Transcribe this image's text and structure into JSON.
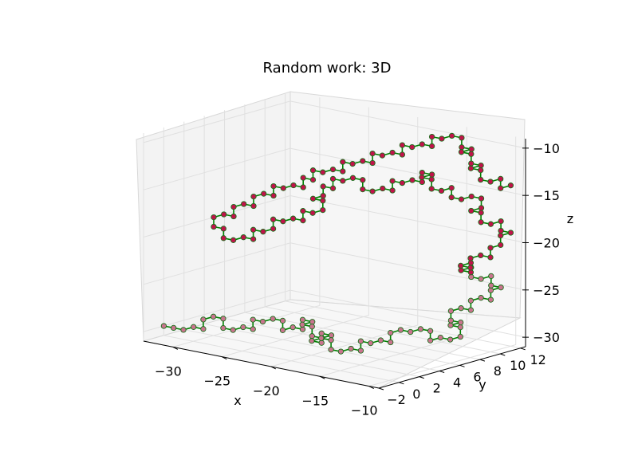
{
  "chart_data": {
    "type": "scatter",
    "projection": "3d",
    "title": "Random work: 3D",
    "xlabel": "x",
    "ylabel": "y",
    "zlabel": "z",
    "xlim": [
      -33,
      -9
    ],
    "ylim": [
      -2,
      12.5
    ],
    "zlim": [
      -31,
      -9
    ],
    "xticks": [
      "−30",
      "−25",
      "−20",
      "−15",
      "−10"
    ],
    "yticks": [
      "−2",
      "0",
      "2",
      "4",
      "6",
      "8",
      "10",
      "12"
    ],
    "zticks": [
      "−10",
      "−15",
      "−20",
      "−25",
      "−30"
    ],
    "grid": true,
    "colors": {
      "marker_upper": "#c0134a",
      "marker_lower": "#c9748e",
      "edge": "#1a6e1a",
      "line": "#008000"
    },
    "path_note": "lattice random walk with unit steps; points plotted as markers joined by a line",
    "series": [
      {
        "points": [
          [
            -33,
            0,
            -30
          ],
          [
            -32,
            0,
            -30
          ],
          [
            -31,
            0,
            -30
          ],
          [
            -31,
            1,
            -30
          ],
          [
            -30,
            1,
            -30
          ],
          [
            -30,
            1,
            -29
          ],
          [
            -30,
            2,
            -29
          ],
          [
            -29,
            2,
            -29
          ],
          [
            -29,
            2,
            -30
          ],
          [
            -28,
            2,
            -30
          ],
          [
            -28,
            3,
            -30
          ],
          [
            -27,
            3,
            -30
          ],
          [
            -27,
            3,
            -29
          ],
          [
            -26,
            3,
            -29
          ],
          [
            -26,
            4,
            -29
          ],
          [
            -25,
            4,
            -29
          ],
          [
            -25,
            4,
            -30
          ],
          [
            -25,
            5,
            -30
          ],
          [
            -24,
            5,
            -30
          ],
          [
            -24,
            5,
            -29
          ],
          [
            -23,
            5,
            -29
          ],
          [
            -23,
            4,
            -29
          ],
          [
            -22,
            4,
            -29
          ],
          [
            -22,
            4,
            -30
          ],
          [
            -21,
            4,
            -30
          ],
          [
            -21,
            3,
            -30
          ],
          [
            -20,
            3,
            -30
          ],
          [
            -20,
            3,
            -29
          ],
          [
            -19,
            3,
            -29
          ],
          [
            -19,
            2,
            -29
          ],
          [
            -18,
            2,
            -29
          ],
          [
            -18,
            2,
            -30
          ],
          [
            -17,
            2,
            -30
          ],
          [
            -17,
            3,
            -30
          ],
          [
            -16,
            3,
            -30
          ],
          [
            -16,
            3,
            -29
          ],
          [
            -15,
            3,
            -29
          ],
          [
            -15,
            4,
            -29
          ],
          [
            -14,
            4,
            -29
          ],
          [
            -14,
            4,
            -28
          ],
          [
            -14,
            5,
            -28
          ],
          [
            -13,
            5,
            -28
          ],
          [
            -13,
            6,
            -28
          ],
          [
            -12,
            6,
            -28
          ],
          [
            -12,
            6,
            -29
          ],
          [
            -12,
            7,
            -29
          ],
          [
            -11,
            7,
            -29
          ],
          [
            -11,
            8,
            -29
          ],
          [
            -11,
            8,
            -28
          ],
          [
            -12,
            8,
            -28
          ],
          [
            -12,
            9,
            -28
          ],
          [
            -13,
            9,
            -28
          ],
          [
            -13,
            9,
            -27
          ],
          [
            -13,
            10,
            -27
          ],
          [
            -12,
            10,
            -27
          ],
          [
            -12,
            10,
            -26
          ],
          [
            -12,
            11,
            -26
          ],
          [
            -11,
            11,
            -26
          ],
          [
            -11,
            11,
            -25
          ],
          [
            -11,
            12,
            -25
          ],
          [
            -12,
            12,
            -25
          ],
          [
            -12,
            12,
            -24
          ],
          [
            -12,
            11,
            -24
          ],
          [
            -13,
            11,
            -24
          ],
          [
            -13,
            11,
            -23
          ],
          [
            -13,
            10,
            -23
          ],
          [
            -12,
            10,
            -23
          ],
          [
            -12,
            10,
            -22
          ],
          [
            -12,
            9,
            -22
          ],
          [
            -11,
            9,
            -22
          ],
          [
            -11,
            9,
            -21
          ],
          [
            -11,
            10,
            -21
          ],
          [
            -10,
            10,
            -21
          ],
          [
            -10,
            10,
            -20
          ],
          [
            -10,
            11,
            -20
          ],
          [
            -10,
            11,
            -19
          ],
          [
            -10,
            12,
            -19
          ],
          [
            -11,
            12,
            -19
          ],
          [
            -11,
            12,
            -18
          ],
          [
            -11,
            11,
            -18
          ],
          [
            -12,
            11,
            -18
          ],
          [
            -12,
            11,
            -17
          ],
          [
            -13,
            11,
            -17
          ],
          [
            -13,
            12,
            -17
          ],
          [
            -13,
            12,
            -16
          ],
          [
            -14,
            12,
            -16
          ],
          [
            -14,
            11,
            -16
          ],
          [
            -15,
            11,
            -16
          ],
          [
            -15,
            11,
            -15
          ],
          [
            -15,
            10,
            -15
          ],
          [
            -16,
            10,
            -15
          ],
          [
            -16,
            10,
            -14
          ],
          [
            -17,
            10,
            -14
          ],
          [
            -17,
            11,
            -14
          ],
          [
            -18,
            11,
            -14
          ],
          [
            -18,
            11,
            -15
          ],
          [
            -19,
            11,
            -15
          ],
          [
            -19,
            10,
            -15
          ],
          [
            -20,
            10,
            -15
          ],
          [
            -20,
            10,
            -16
          ],
          [
            -21,
            10,
            -16
          ],
          [
            -21,
            9,
            -16
          ],
          [
            -22,
            9,
            -16
          ],
          [
            -22,
            9,
            -15
          ],
          [
            -23,
            9,
            -15
          ],
          [
            -23,
            8,
            -15
          ],
          [
            -24,
            8,
            -15
          ],
          [
            -24,
            8,
            -16
          ],
          [
            -25,
            8,
            -16
          ],
          [
            -25,
            8,
            -17
          ],
          [
            -25,
            7,
            -17
          ],
          [
            -24,
            7,
            -17
          ],
          [
            -24,
            7,
            -18
          ],
          [
            -24,
            6,
            -18
          ],
          [
            -25,
            6,
            -18
          ],
          [
            -25,
            6,
            -19
          ],
          [
            -26,
            6,
            -19
          ],
          [
            -26,
            5,
            -19
          ],
          [
            -27,
            5,
            -19
          ],
          [
            -27,
            5,
            -20
          ],
          [
            -27,
            4,
            -20
          ],
          [
            -28,
            4,
            -20
          ],
          [
            -28,
            4,
            -21
          ],
          [
            -29,
            4,
            -21
          ],
          [
            -29,
            3,
            -21
          ],
          [
            -30,
            3,
            -21
          ],
          [
            -30,
            3,
            -20
          ],
          [
            -31,
            3,
            -20
          ],
          [
            -31,
            3,
            -19
          ],
          [
            -31,
            4,
            -19
          ],
          [
            -30,
            4,
            -19
          ],
          [
            -30,
            4,
            -18
          ],
          [
            -30,
            5,
            -18
          ],
          [
            -29,
            5,
            -18
          ],
          [
            -29,
            5,
            -17
          ],
          [
            -29,
            6,
            -17
          ],
          [
            -28,
            6,
            -17
          ],
          [
            -28,
            6,
            -16
          ],
          [
            -27,
            6,
            -16
          ],
          [
            -27,
            7,
            -16
          ],
          [
            -26,
            7,
            -16
          ],
          [
            -26,
            7,
            -15
          ],
          [
            -25,
            7,
            -15
          ],
          [
            -25,
            7,
            -14
          ],
          [
            -24,
            7,
            -14
          ],
          [
            -24,
            8,
            -14
          ],
          [
            -23,
            8,
            -14
          ],
          [
            -23,
            8,
            -13
          ],
          [
            -22,
            8,
            -13
          ],
          [
            -22,
            9,
            -13
          ],
          [
            -21,
            9,
            -13
          ],
          [
            -21,
            9,
            -12
          ],
          [
            -20,
            9,
            -12
          ],
          [
            -20,
            10,
            -12
          ],
          [
            -19,
            10,
            -12
          ],
          [
            -19,
            10,
            -11
          ],
          [
            -18,
            10,
            -11
          ],
          [
            -18,
            11,
            -11
          ],
          [
            -17,
            11,
            -11
          ],
          [
            -17,
            11,
            -10
          ],
          [
            -16,
            11,
            -10
          ],
          [
            -16,
            12,
            -10
          ],
          [
            -15,
            12,
            -10
          ],
          [
            -15,
            12,
            -11
          ],
          [
            -14,
            12,
            -11
          ],
          [
            -14,
            11,
            -11
          ],
          [
            -13,
            11,
            -11
          ],
          [
            -13,
            11,
            -12
          ],
          [
            -12,
            11,
            -12
          ],
          [
            -12,
            10,
            -12
          ],
          [
            -11,
            10,
            -12
          ],
          [
            -11,
            10,
            -13
          ],
          [
            -10,
            10,
            -13
          ],
          [
            -10,
            11,
            -13
          ],
          [
            -10,
            11,
            -14
          ],
          [
            -10,
            12,
            -14
          ]
        ]
      }
    ]
  }
}
